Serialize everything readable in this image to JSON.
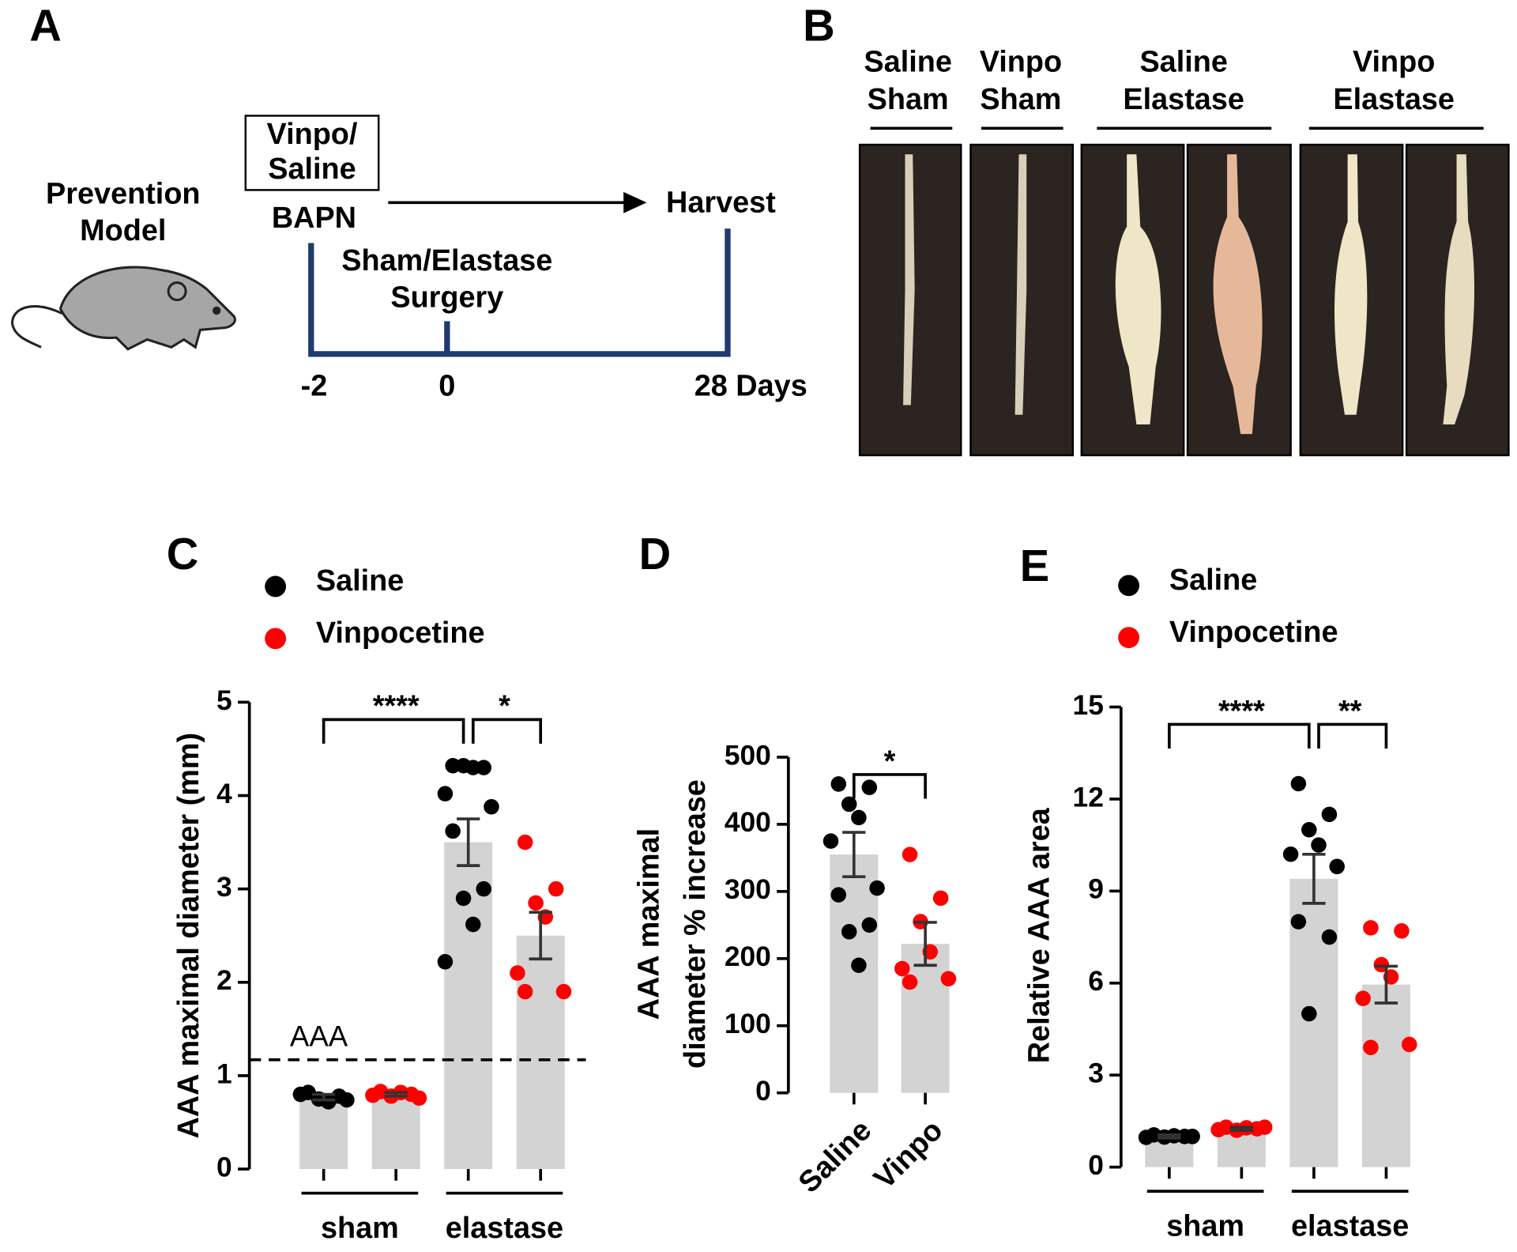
{
  "panel_a": {
    "label": "A",
    "model": [
      "Prevention",
      "Model"
    ],
    "box": [
      "Vinpo/",
      "Saline"
    ],
    "start": "BAPN",
    "end": "Harvest",
    "event": [
      "Sham/Elastase",
      "Surgery"
    ],
    "timeline": [
      "-2",
      "0",
      "28 Days"
    ]
  },
  "panel_b": {
    "label": "B",
    "groups": [
      [
        "Saline",
        "Sham"
      ],
      [
        "Vinpo",
        "Sham"
      ],
      [
        "Saline",
        "Elastase"
      ],
      [
        "Vinpo",
        "Elastase"
      ]
    ]
  },
  "chart_data": [
    {
      "type": "bar",
      "panel": "C",
      "ylabel": "AAA maximal diameter (mm)",
      "ylim": [
        0,
        5
      ],
      "yticks": [
        0,
        1,
        2,
        3,
        4,
        5
      ],
      "categories": [
        "sham",
        "elastase"
      ],
      "bar_color": "#d3d3d3",
      "series": [
        {
          "name": "Saline",
          "color": "#000000",
          "values": [
            0.77,
            3.5
          ],
          "errors": [
            0.03,
            0.25
          ],
          "points": [
            [
              0.82,
              0.78,
              0.75,
              0.72,
              0.8,
              0.74
            ],
            [
              4.32,
              4.3,
              4.32,
              4.3,
              4.02,
              3.88,
              3.62,
              3.0,
              2.9,
              2.62,
              2.22
            ]
          ]
        },
        {
          "name": "Vinpocetine",
          "color": "#ff0000",
          "values": [
            0.8,
            2.5
          ],
          "errors": [
            0.02,
            0.25
          ],
          "points": [
            [
              0.83,
              0.8,
              0.78,
              0.82,
              0.79,
              0.76
            ],
            [
              3.5,
              3.0,
              2.85,
              2.7,
              2.1,
              1.9,
              1.9
            ]
          ]
        }
      ],
      "threshold": {
        "value": 1.17,
        "label": "AAA"
      },
      "significance": [
        {
          "label": "****",
          "bars": [
            0,
            2
          ]
        },
        {
          "label": "*",
          "bars": [
            2,
            3
          ]
        }
      ]
    },
    {
      "type": "bar",
      "panel": "D",
      "ylabel": [
        "AAA maximal",
        "diameter  % increase"
      ],
      "ylim": [
        0,
        500
      ],
      "yticks": [
        0,
        100,
        200,
        300,
        400,
        500
      ],
      "categories": [
        "Saline",
        "Vinpo"
      ],
      "colors": [
        "#000000",
        "#ff0000"
      ],
      "bar_color": "#d3d3d3",
      "values": [
        355,
        222
      ],
      "errors": [
        33,
        32
      ],
      "points": [
        [
          460,
          455,
          430,
          410,
          375,
          305,
          295,
          250,
          240,
          190
        ],
        [
          355,
          290,
          255,
          210,
          185,
          170,
          165
        ]
      ],
      "significance": [
        {
          "label": "*",
          "bars": [
            0,
            1
          ]
        }
      ]
    },
    {
      "type": "bar",
      "panel": "E",
      "ylabel": "Relative AAA area",
      "ylim": [
        0,
        15
      ],
      "yticks": [
        0,
        3,
        6,
        9,
        12,
        15
      ],
      "categories": [
        "sham",
        "elastase"
      ],
      "bar_color": "#d3d3d3",
      "series": [
        {
          "name": "Saline",
          "color": "#000000",
          "values": [
            1.0,
            9.4
          ],
          "errors": [
            0.05,
            0.8
          ],
          "points": [
            [
              1.05,
              1.0,
              0.98,
              1.02,
              0.97,
              1.0
            ],
            [
              12.5,
              11.5,
              11.0,
              10.5,
              10.2,
              9.8,
              8.0,
              7.5,
              5.0
            ]
          ]
        },
        {
          "name": "Vinpocetine",
          "color": "#ff0000",
          "values": [
            1.25,
            5.95
          ],
          "errors": [
            0.05,
            0.6
          ],
          "points": [
            [
              1.3,
              1.25,
              1.2,
              1.28,
              1.22,
              1.3
            ],
            [
              7.8,
              7.7,
              6.6,
              6.2,
              5.5,
              4.0,
              3.9
            ]
          ]
        }
      ],
      "significance": [
        {
          "label": "****",
          "bars": [
            0,
            2
          ]
        },
        {
          "label": "**",
          "bars": [
            2,
            3
          ]
        }
      ]
    }
  ]
}
